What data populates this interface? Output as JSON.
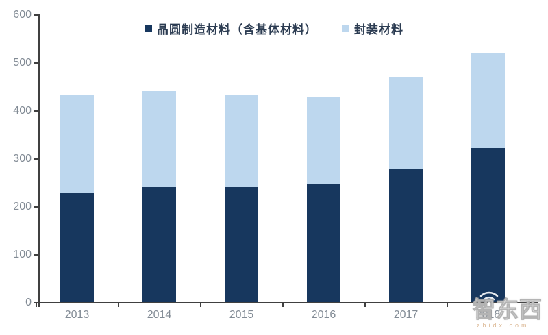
{
  "colors": {
    "background": "#ffffff",
    "axis": "#404040",
    "tick_label": "#828b95",
    "legend_text": "#2c3c52",
    "series_dark": "#17375E",
    "series_light": "#BDD7EE"
  },
  "watermark": {
    "brand": "智东西",
    "domain": "zhidx.com"
  },
  "chart_data": {
    "type": "bar",
    "stacked": true,
    "title": "",
    "xlabel": "",
    "ylabel": "",
    "categories": [
      "2013",
      "2014",
      "2015",
      "2016",
      "2017",
      "2018"
    ],
    "series": [
      {
        "name": "晶圆制造材料（含基体材料）",
        "color": "#17375E",
        "values": [
          227,
          240,
          240,
          247,
          278,
          322
        ]
      },
      {
        "name": "封装材料",
        "color": "#BDD7EE",
        "values": [
          204,
          200,
          193,
          182,
          191,
          197
        ]
      }
    ],
    "stack_totals": [
      431,
      440,
      433,
      429,
      469,
      519
    ],
    "ylim": [
      0,
      600
    ],
    "yticks": [
      0,
      100,
      200,
      300,
      400,
      500,
      600
    ],
    "grid": false,
    "legend_position": "top"
  }
}
